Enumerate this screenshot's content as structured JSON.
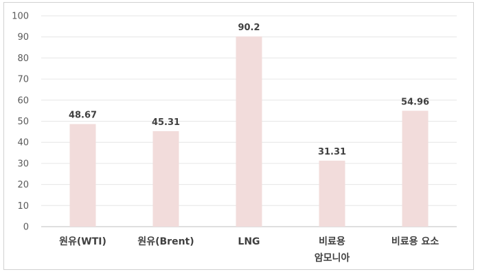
{
  "chart_data": {
    "type": "bar",
    "categories": [
      [
        "원유(WTI)"
      ],
      [
        "원유(Brent)"
      ],
      [
        "LNG"
      ],
      [
        "비료용",
        "암모니아"
      ],
      [
        "비료용 요소"
      ]
    ],
    "values": [
      48.67,
      45.31,
      90.2,
      31.31,
      54.96
    ],
    "data_labels": [
      "48.67",
      "45.31",
      "90.2",
      "31.31",
      "54.96"
    ],
    "title": "",
    "xlabel": "",
    "ylabel": "",
    "ylim": [
      0,
      100
    ],
    "yticks": [
      0,
      10,
      20,
      30,
      40,
      50,
      60,
      70,
      80,
      90,
      100
    ],
    "grid": true,
    "legend": "none",
    "colors": {
      "bar": "#f2dcdb",
      "grid": "#e6e6e6",
      "axis": "#bfbfbf",
      "text": "#404040"
    }
  }
}
